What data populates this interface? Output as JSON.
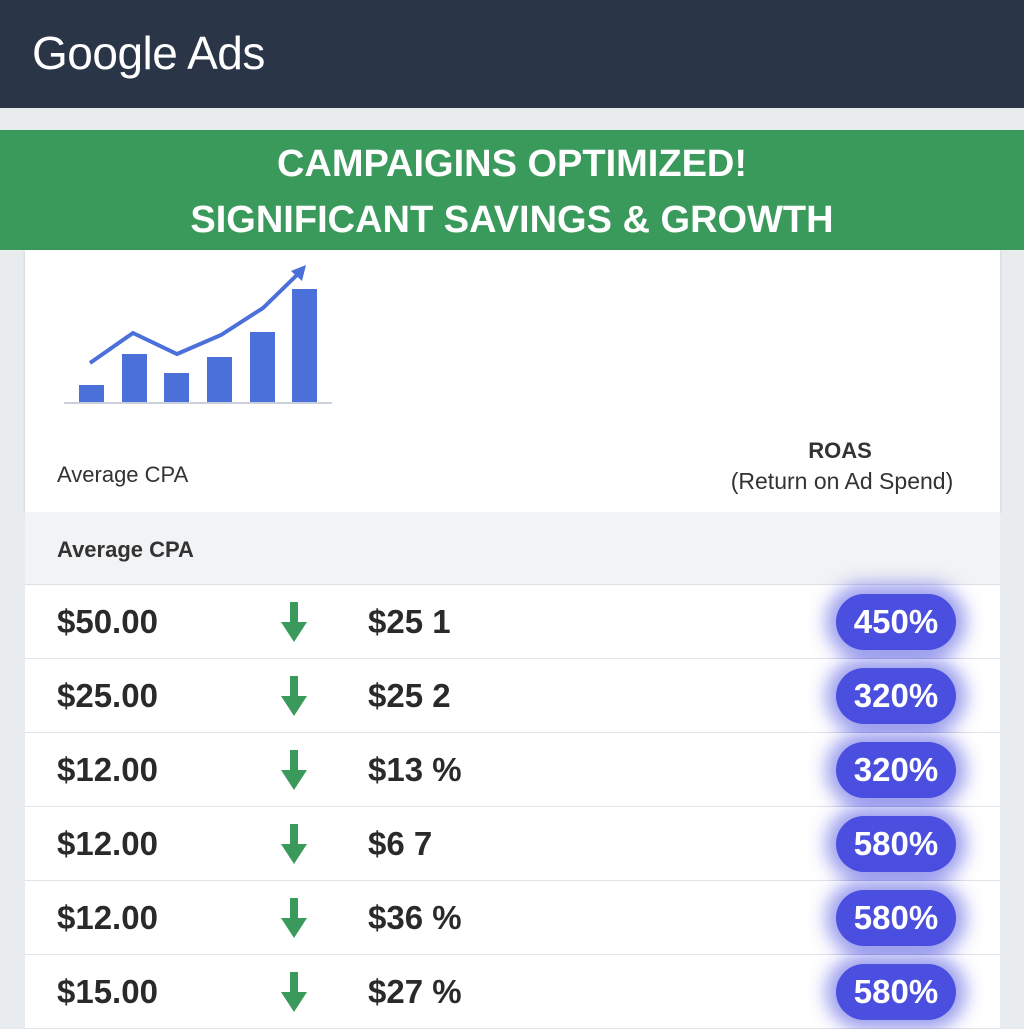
{
  "header": {
    "title": "Google Ads"
  },
  "banner": {
    "lines": [
      "CAMPAIGINS OPTIMIZED!",
      "SIGNIFICANT SAVINGS & GROWTH"
    ]
  },
  "card": {
    "left_label": "Average CPA",
    "right_label": "ROAS",
    "right_sublabel": "(Return on Ad Spend)"
  },
  "table": {
    "header": "Average CPA",
    "rows": [
      [
        "$50.00",
        "$25 1",
        "450%"
      ],
      [
        "$25.00",
        "$25 2",
        "320%"
      ],
      [
        "$12.00",
        "$13 %",
        "320%"
      ],
      [
        "$12.00",
        "$6 7",
        "580%"
      ],
      [
        "$12.00",
        "$36 %",
        "580%"
      ],
      [
        "$15.00",
        "$27 %",
        "580%"
      ]
    ]
  }
}
